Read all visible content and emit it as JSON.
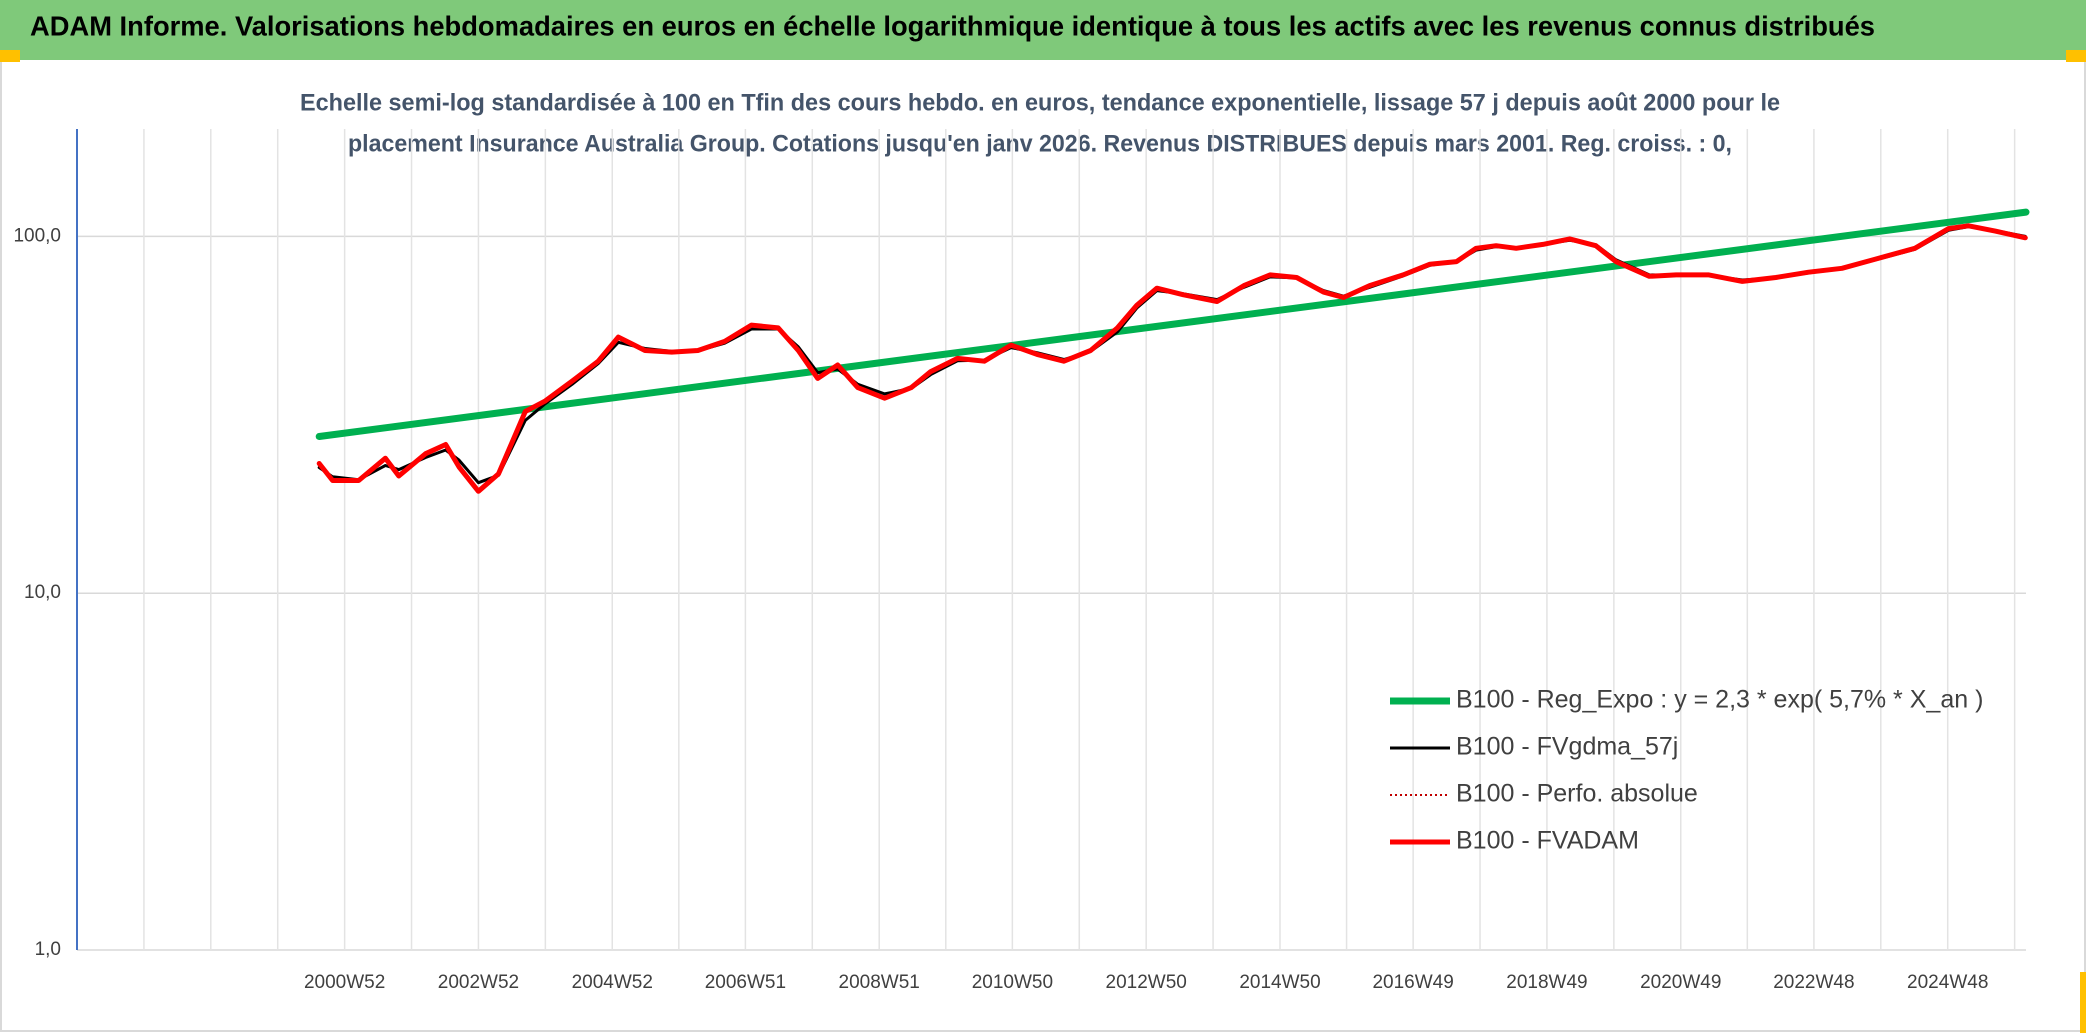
{
  "header": {
    "title": "ADAM Informe. Valorisations hebdomadaires en euros en échelle logarithmique identique à tous les actifs avec les revenus connus distribués"
  },
  "chart_data": {
    "type": "line",
    "subtitle_lines": [
      "Echelle semi-log standardisée à 100 en Tfin des cours hebdo. en euros, tendance exponentielle, lissage 57 j depuis août 2000 pour le",
      "placement Insurance Australia Group. Cotations jusqu'en janv 2026. Revenus DISTRIBUES depuis mars 2001. Reg. croiss. : 0,"
    ],
    "log_scale": true,
    "grid": true,
    "ylim": [
      1,
      200
    ],
    "yticks": [
      {
        "value": 1,
        "label": "1,0"
      },
      {
        "value": 10,
        "label": "10,0"
      },
      {
        "value": 100,
        "label": "100,0"
      }
    ],
    "xlim": [
      1997.0,
      2026.13
    ],
    "xticks": [
      {
        "value": 2001.0,
        "label": "2000W52"
      },
      {
        "value": 2003.0,
        "label": "2002W52"
      },
      {
        "value": 2005.0,
        "label": "2004W52"
      },
      {
        "value": 2006.99,
        "label": "2006W51"
      },
      {
        "value": 2008.99,
        "label": "2008W51"
      },
      {
        "value": 2010.98,
        "label": "2010W50"
      },
      {
        "value": 2012.98,
        "label": "2012W50"
      },
      {
        "value": 2014.98,
        "label": "2014W50"
      },
      {
        "value": 2016.97,
        "label": "2016W49"
      },
      {
        "value": 2018.97,
        "label": "2018W49"
      },
      {
        "value": 2020.97,
        "label": "2020W49"
      },
      {
        "value": 2022.96,
        "label": "2022W48"
      },
      {
        "value": 2024.96,
        "label": "2024W48"
      }
    ],
    "x": [
      2000.62,
      2000.82,
      2001.21,
      2001.61,
      2001.81,
      2002.21,
      2002.51,
      2002.71,
      2003.0,
      2003.3,
      2003.7,
      2004.0,
      2004.4,
      2004.79,
      2005.09,
      2005.49,
      2005.89,
      2006.28,
      2006.68,
      2007.08,
      2007.48,
      2007.78,
      2008.07,
      2008.37,
      2008.67,
      2009.07,
      2009.47,
      2009.76,
      2010.16,
      2010.56,
      2010.96,
      2011.35,
      2011.75,
      2012.15,
      2012.55,
      2012.84,
      2013.14,
      2013.54,
      2014.04,
      2014.44,
      2014.83,
      2015.23,
      2015.63,
      2015.93,
      2016.32,
      2016.82,
      2017.22,
      2017.62,
      2017.91,
      2018.21,
      2018.51,
      2018.91,
      2019.31,
      2019.7,
      2020.0,
      2020.5,
      2020.9,
      2021.39,
      2021.89,
      2022.39,
      2022.88,
      2023.38,
      2023.88,
      2024.47,
      2024.97,
      2025.27,
      2025.67,
      2026.12
    ],
    "series": [
      {
        "name": "B100 - Reg_Expo : y = 2,3 * exp( 5,7% *  X_an )",
        "color": "#00b050",
        "line_width": 7,
        "x": [
          2000.62,
          2026.13
        ],
        "values": [
          27.5,
          117
        ]
      },
      {
        "name": "B100 - FVgdma_57j",
        "color": "#000000",
        "line_width": 3,
        "values": [
          22.5,
          21.2,
          20.8,
          22.8,
          22.2,
          24.0,
          25.2,
          23.6,
          20.4,
          21.4,
          30.5,
          34.0,
          38.5,
          44.0,
          50.5,
          48.5,
          47.6,
          47.8,
          50.2,
          55.0,
          55.0,
          49.0,
          41.5,
          42.5,
          38.5,
          36.2,
          37.5,
          41.0,
          44.8,
          45.0,
          48.8,
          47.2,
          45.2,
          47.6,
          54.0,
          63.0,
          70.5,
          69.0,
          66.5,
          72.0,
          77.0,
          76.5,
          70.5,
          68.0,
          72.0,
          77.5,
          83.0,
          85.0,
          91.5,
          93.6,
          93.0,
          95.0,
          97.5,
          94.8,
          86.0,
          78.0,
          77.8,
          77.8,
          75.5,
          76.5,
          79.0,
          81.2,
          86.0,
          92.0,
          104.0,
          106.5,
          103.8,
          100.0
        ]
      },
      {
        "name": "B100 - Perfo. absolue",
        "color": "#c00000",
        "line_width": 2,
        "dash": "dotted",
        "values": [
          23.1,
          20.7,
          20.7,
          23.9,
          21.3,
          24.6,
          26.1,
          22.6,
          19.3,
          21.6,
          32.3,
          34.6,
          39.3,
          44.7,
          52.2,
          47.9,
          47.4,
          47.9,
          50.8,
          56.4,
          55.4,
          47.9,
          40.0,
          43.6,
          37.7,
          35.2,
          37.7,
          41.8,
          45.5,
          44.7,
          49.6,
          46.7,
          44.7,
          47.9,
          55.4,
          64.1,
          71.6,
          68.6,
          65.7,
          72.8,
          78.0,
          76.7,
          69.8,
          67.4,
          72.8,
          78.0,
          83.6,
          85.0,
          92.6,
          94.2,
          92.6,
          95.0,
          98.4,
          94.2,
          85.0,
          77.3,
          78.0,
          78.0,
          74.8,
          76.7,
          79.4,
          81.4,
          86.4,
          92.6,
          105.2,
          107.1,
          103.5,
          99.1
        ]
      },
      {
        "name": "B100 - FVADAM",
        "color": "#ff0000",
        "line_width": 5,
        "values": [
          23.1,
          20.7,
          20.7,
          23.9,
          21.3,
          24.6,
          26.1,
          22.6,
          19.3,
          21.6,
          32.3,
          34.6,
          39.3,
          44.7,
          52.2,
          47.9,
          47.4,
          47.9,
          50.8,
          56.4,
          55.4,
          47.9,
          40.0,
          43.6,
          37.7,
          35.2,
          37.7,
          41.8,
          45.5,
          44.7,
          49.6,
          46.7,
          44.7,
          47.9,
          55.4,
          64.1,
          71.6,
          68.6,
          65.7,
          72.8,
          78.0,
          76.7,
          69.8,
          67.4,
          72.8,
          78.0,
          83.6,
          85.0,
          92.6,
          94.2,
          92.6,
          95.0,
          98.4,
          94.2,
          85.0,
          77.3,
          78.0,
          78.0,
          74.8,
          76.7,
          79.4,
          81.4,
          86.4,
          92.6,
          105.2,
          107.1,
          103.5,
          99.1
        ]
      }
    ]
  }
}
